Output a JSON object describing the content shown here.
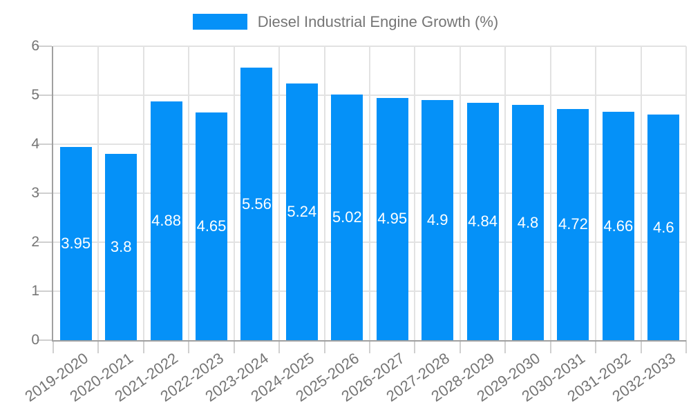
{
  "chart_data": {
    "type": "bar",
    "title": "Diesel Industrial Engine Growth (%)",
    "legend_label": "Diesel Industrial Engine Growth (%)",
    "legend_position": "top",
    "categories": [
      "2019-2020",
      "2020-2021",
      "2021-2022",
      "2022-2023",
      "2023-2024",
      "2024-2025",
      "2025-2026",
      "2026-2027",
      "2027-2028",
      "2028-2029",
      "2029-2030",
      "2030-2031",
      "2031-2032",
      "2032-2033"
    ],
    "values": [
      3.95,
      3.8,
      4.88,
      4.65,
      5.56,
      5.24,
      5.02,
      4.95,
      4.9,
      4.84,
      4.8,
      4.72,
      4.66,
      4.6
    ],
    "value_labels": [
      "3.95",
      "3.8",
      "4.88",
      "4.65",
      "5.56",
      "5.24",
      "5.02",
      "4.95",
      "4.9",
      "4.84",
      "4.8",
      "4.72",
      "4.66",
      "4.6"
    ],
    "xlabel": "",
    "ylabel": "",
    "ylim": [
      0,
      6
    ],
    "yticks": [
      0,
      1,
      2,
      3,
      4,
      5,
      6
    ],
    "grid": true,
    "colors": {
      "bar": "#0591f8",
      "gridline": "#e2e2e2",
      "axis_line": "#a0a0a0",
      "tick_mark": "#cfcfcf",
      "tick_text": "#757575",
      "value_label_text": "#ffffff",
      "background": "#ffffff"
    }
  }
}
